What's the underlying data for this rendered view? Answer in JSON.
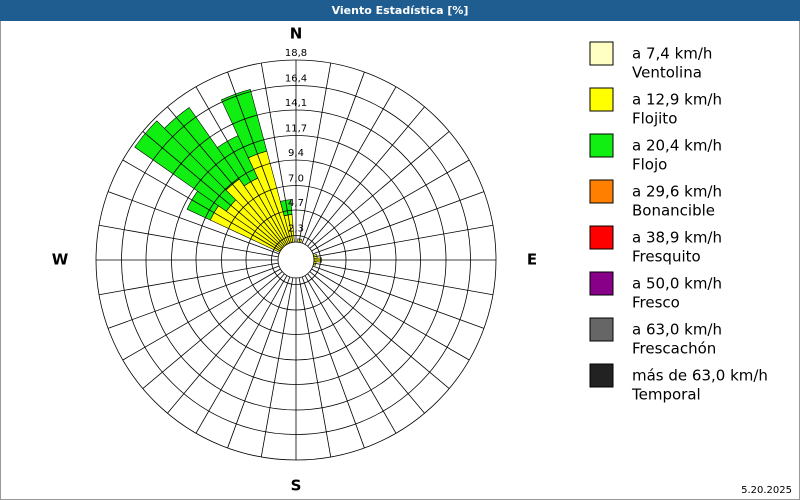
{
  "chart_data": {
    "type": "windrose",
    "title": "Viento Estadística [%]",
    "categories": [
      "N",
      null,
      null,
      null,
      null,
      null,
      null,
      null,
      null,
      "E",
      null,
      null,
      null,
      null,
      null,
      null,
      null,
      null,
      "S",
      null,
      null,
      null,
      null,
      null,
      null,
      null,
      null,
      "W",
      null,
      null,
      null,
      null,
      null,
      null,
      null,
      null
    ],
    "rlim": [
      0,
      18.8
    ],
    "rticks": [
      {
        "value": 2.3,
        "label": "2,3"
      },
      {
        "value": 4.7,
        "label": "4,7"
      },
      {
        "value": 7.0,
        "label": "7,0"
      },
      {
        "value": 9.4,
        "label": "9,4"
      },
      {
        "value": 11.7,
        "label": "11,7"
      },
      {
        "value": 14.1,
        "label": "14,1"
      },
      {
        "value": 16.4,
        "label": "16,4"
      },
      {
        "value": 18.8,
        "label": "18,8"
      }
    ],
    "series": [
      {
        "name": "a 7,4 km/h",
        "label": "Ventolina",
        "color": "#ffffc4",
        "values": [
          0,
          0,
          0,
          0,
          0,
          0,
          0,
          0,
          0,
          0,
          0,
          0,
          0,
          0,
          0,
          0,
          0,
          0,
          0,
          0,
          0,
          0,
          0,
          0,
          0,
          0,
          0,
          0,
          0,
          0,
          0,
          0,
          0,
          0,
          0,
          0
        ]
      },
      {
        "name": "a 12,9 km/h",
        "label": "Flojito",
        "color": "#ffff00",
        "values": [
          0,
          2.0,
          1.5,
          0,
          0,
          0,
          0,
          0,
          2.0,
          2.4,
          1.9,
          0,
          0,
          0,
          0,
          0,
          0,
          0,
          0,
          0,
          0,
          0,
          0,
          0,
          0,
          0,
          0,
          0,
          0,
          0,
          8.9,
          8.0,
          9.3,
          8.5,
          10.6,
          4.3
        ]
      },
      {
        "name": "a 20,4 km/h",
        "label": "Flojo",
        "color": "#11ee11",
        "values": [
          0,
          0,
          0,
          0,
          0,
          0,
          0,
          0,
          0,
          0,
          0,
          0,
          0,
          0,
          0,
          0,
          0,
          0,
          0,
          0,
          0,
          0,
          0,
          0,
          0,
          0,
          0,
          0,
          0,
          0,
          2.4,
          10.5,
          8.2,
          4.4,
          6.0,
          1.4
        ]
      },
      {
        "name": "a 29,6 km/h",
        "label": "Bonancible",
        "color": "#ff8000",
        "values": [
          0,
          0,
          0,
          0,
          0,
          0,
          0,
          0,
          0,
          0,
          0,
          0,
          0,
          0,
          0,
          0,
          0,
          0,
          0,
          0,
          0,
          0,
          0,
          0,
          0,
          0,
          0,
          0,
          0,
          0,
          0,
          0,
          0,
          0,
          0,
          0
        ]
      },
      {
        "name": "a 38,9 km/h",
        "label": "Fresquito",
        "color": "#ff0000",
        "values": [
          0,
          0,
          0,
          0,
          0,
          0,
          0,
          0,
          0,
          0,
          0,
          0,
          0,
          0,
          0,
          0,
          0,
          0,
          0,
          0,
          0,
          0,
          0,
          0,
          0,
          0,
          0,
          0,
          0,
          0,
          0,
          0,
          0,
          0,
          0,
          0
        ]
      },
      {
        "name": "a 50,0 km/h",
        "label": "Fresco",
        "color": "#880088",
        "values": [
          0,
          0,
          0,
          0,
          0,
          0,
          0,
          0,
          0,
          0,
          0,
          0,
          0,
          0,
          0,
          0,
          0,
          0,
          0,
          0,
          0,
          0,
          0,
          0,
          0,
          0,
          0,
          0,
          0,
          0,
          0,
          0,
          0,
          0,
          0,
          0
        ]
      },
      {
        "name": "a 63,0 km/h",
        "label": "Frescachón",
        "color": "#666666",
        "values": [
          0,
          0,
          0,
          0,
          0,
          0,
          0,
          0,
          0,
          0,
          0,
          0,
          0,
          0,
          0,
          0,
          0,
          0,
          0,
          0,
          0,
          0,
          0,
          0,
          0,
          0,
          0,
          0,
          0,
          0,
          0,
          0,
          0,
          0,
          0,
          0
        ]
      },
      {
        "name": "más de 63,0 km/h",
        "label": "Temporal",
        "color": "#222222",
        "values": [
          0,
          0,
          0,
          0,
          0,
          0,
          0,
          0,
          0,
          0,
          0,
          0,
          0,
          0,
          0,
          0,
          0,
          0,
          0,
          0,
          0,
          0,
          0,
          0,
          0,
          0,
          0,
          0,
          0,
          0,
          0,
          0,
          0,
          0,
          0,
          0
        ]
      }
    ]
  },
  "footer": {
    "date": "5.20.2025"
  }
}
